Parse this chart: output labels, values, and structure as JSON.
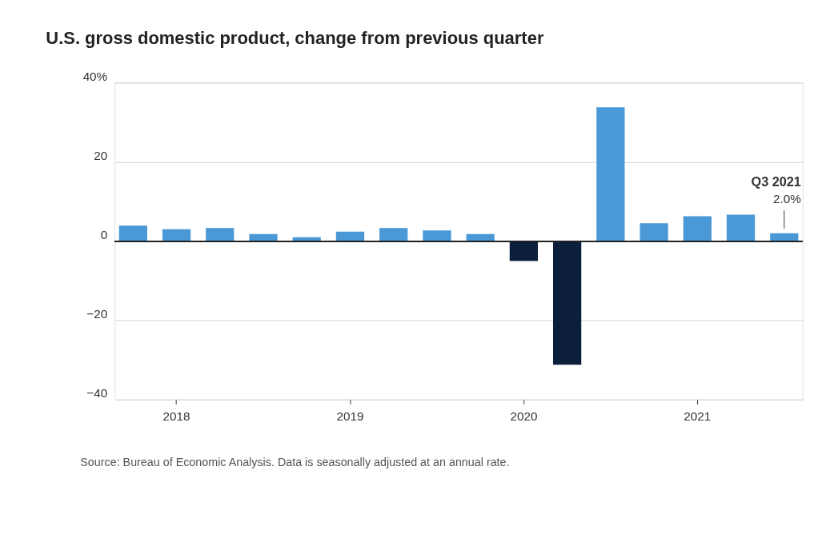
{
  "chart_data": {
    "type": "bar",
    "title": "U.S. gross domestic product, change from previous quarter",
    "categories": [
      null,
      "2018",
      null,
      null,
      null,
      "2019",
      null,
      null,
      null,
      "2020",
      null,
      null,
      null,
      "2021",
      null,
      null
    ],
    "values": [
      3.9,
      3.0,
      3.3,
      1.8,
      1.0,
      2.4,
      3.3,
      2.7,
      1.8,
      -5.0,
      -31.2,
      33.8,
      4.5,
      6.3,
      6.7,
      2.0
    ],
    "colors": [
      "#4a98d6",
      "#4a98d6",
      "#4a98d6",
      "#4a98d6",
      "#4a98d6",
      "#4a98d6",
      "#4a98d6",
      "#4a98d6",
      "#4a98d6",
      "#0b1f3a",
      "#0b1f3a",
      "#4a98d6",
      "#4a98d6",
      "#4a98d6",
      "#4a98d6",
      "#4a98d6"
    ],
    "value_labels": [
      null,
      null,
      null,
      null,
      null,
      null,
      null,
      null,
      null,
      null,
      null,
      null,
      null,
      null,
      null,
      "2.0%"
    ],
    "annotations": [
      "Q3 2021",
      "Source: Bureau of Economic Analysis. Data is seasonally adjusted at an annual rate."
    ],
    "ylim": [
      -40,
      40
    ],
    "yticks": [
      {
        "value": -40,
        "label": "−40"
      },
      {
        "value": -20,
        "label": "−20"
      },
      0,
      20,
      {
        "value": 40,
        "label": "40%"
      }
    ],
    "grid": "y"
  }
}
